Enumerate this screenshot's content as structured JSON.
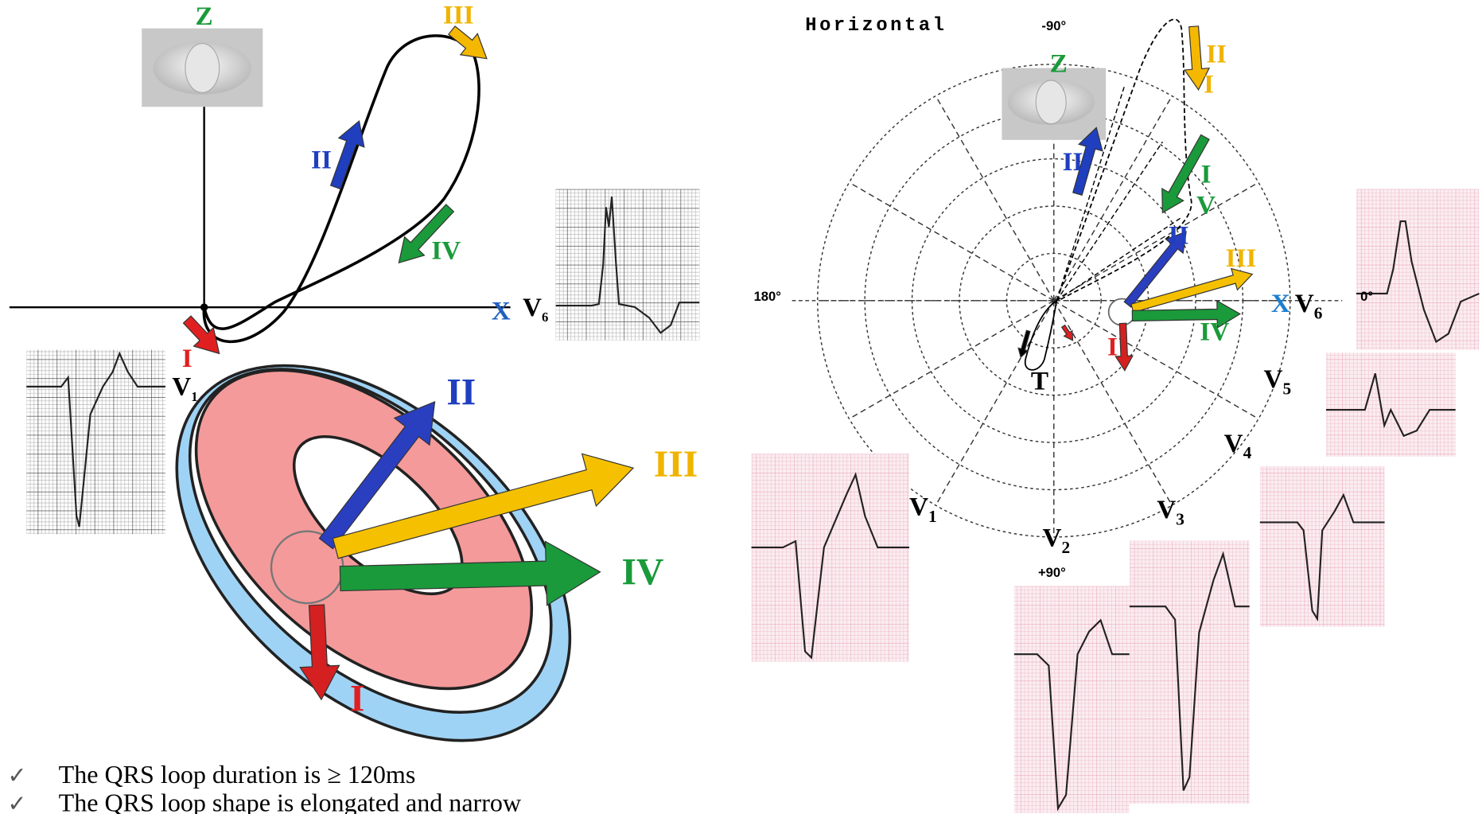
{
  "left_loop": {
    "axis_z": "Z",
    "axis_x": "X",
    "loop_arrows": {
      "I": "I",
      "II": "II",
      "III": "III",
      "IV": "IV"
    },
    "lead_v6": {
      "lead": "V",
      "index": "6"
    },
    "lead_v1": {
      "lead": "V",
      "index": "1"
    }
  },
  "left_model": {
    "vectors": {
      "I": "I",
      "II": "II",
      "III": "III",
      "IV": "IV"
    }
  },
  "horizontal_plane": {
    "title": "Horizontal",
    "angles": {
      "top": "-90°",
      "left": "180°",
      "right": "0°",
      "bottom": "+90°"
    },
    "axis_z": "Z",
    "axis_x": "X",
    "loop_arrows": {
      "yellow": [
        "II",
        "I"
      ],
      "blue": "II",
      "green": [
        "I",
        "V"
      ]
    },
    "vectors": {
      "I": "I",
      "II": "II",
      "III": "III",
      "IV": "IV"
    },
    "t_label": "T",
    "leads": [
      {
        "lead": "V",
        "index": "1"
      },
      {
        "lead": "V",
        "index": "2"
      },
      {
        "lead": "V",
        "index": "3"
      },
      {
        "lead": "V",
        "index": "4"
      },
      {
        "lead": "V",
        "index": "5"
      },
      {
        "lead": "V",
        "index": "6"
      }
    ]
  },
  "notes": [
    "The QRS loop duration is  ≥ 120ms",
    "The QRS loop shape is elongated and narrow"
  ]
}
